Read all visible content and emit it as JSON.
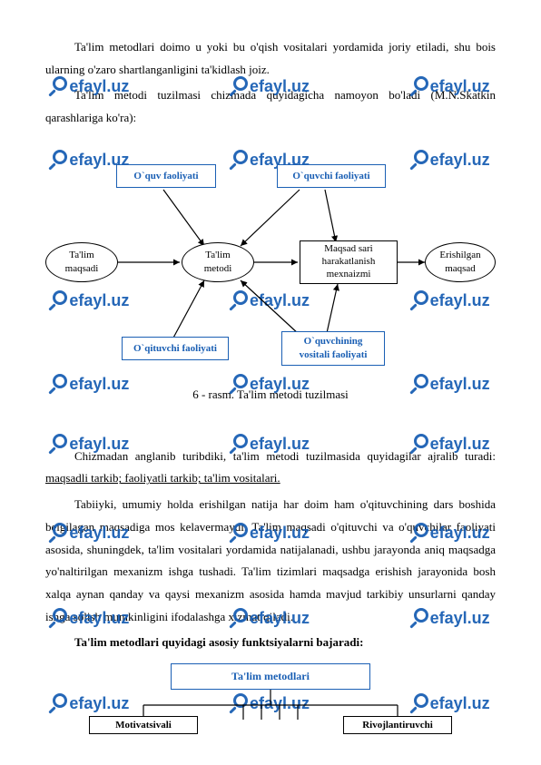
{
  "paras": {
    "p1": "Ta'lim metodlari doimo u yoki bu o'qish vositalari yordamida joriy etiladi, shu bois ularning o'zaro shartlanganligini ta'kidlash joiz.",
    "p2": "Ta'lim metodi tuzilmasi chizmada quyidagicha namoyon bo'ladi (M.N.Skatkin qarashlariga ko'ra):",
    "p3a": "Chizmadan anglanib turibdiki, ta'lim metodi tuzilmasida quyidagilar ajralib turadi: ",
    "p3b": "maqsadli tarkib; faoliyatli tarkib; ta'lim vositalari.",
    "p4": "Tabiiyki, umumiy holda erishilgan natija har doim ham o'qituvchining dars boshida belgilagan maqsadiga mos kelavermaydi. Ta'lim maqsadi o'qituvchi va o'quvchilar faoliyati asosida, shuningdek, ta'lim vositalari yordamida natijalanadi, ushbu jarayonda aniq maqsadga yo'naltirilgan mexanizm ishga tushadi. Ta'lim tizimlari maqsadga erishish jarayonida bosh xalqa aynan qanday va qaysi mexanizm asosida hamda mavjud tarkibiy unsurlarni qanday ishga solish mumkinligini ifodalashga xizmat qiladi.",
    "p5": "Ta'lim metodlari quyidagi asosiy funktsiyalarni bajaradi:"
  },
  "nodes": {
    "oquv": "O`quv faoliyati",
    "oquvchi_f": "O`quvchi faoliyati",
    "talim_maqsadi_l1": "Ta'lim",
    "talim_maqsadi_l2": "maqsadi",
    "talim_metodi_l1": "Ta'lim",
    "talim_metodi_l2": "metodi",
    "maqsad_sari_l1": "Maqsad sari",
    "maqsad_sari_l2": "harakatlanish",
    "maqsad_sari_l3": "mexnaizmi",
    "erishilgan_l1": "Erishilgan",
    "erishilgan_l2": "maqsad",
    "oqituvchi": "O`qituvchi faoliyati",
    "oquvchining_l1": "O`quvchining",
    "oquvchining_l2": "vositali faoliyati"
  },
  "caption": "6 - rasm. Ta'lim metodi tuzilmasi",
  "d2": {
    "top": "Ta'lim metodlari",
    "left": "Motivatsivali ",
    "right": "Rivojlantiruvchi"
  },
  "watermark": "efayl.uz",
  "colors": {
    "accent": "#1a5fb4"
  },
  "wm_rows": [
    84,
    165,
    320,
    412,
    478,
    576,
    670,
    764
  ]
}
